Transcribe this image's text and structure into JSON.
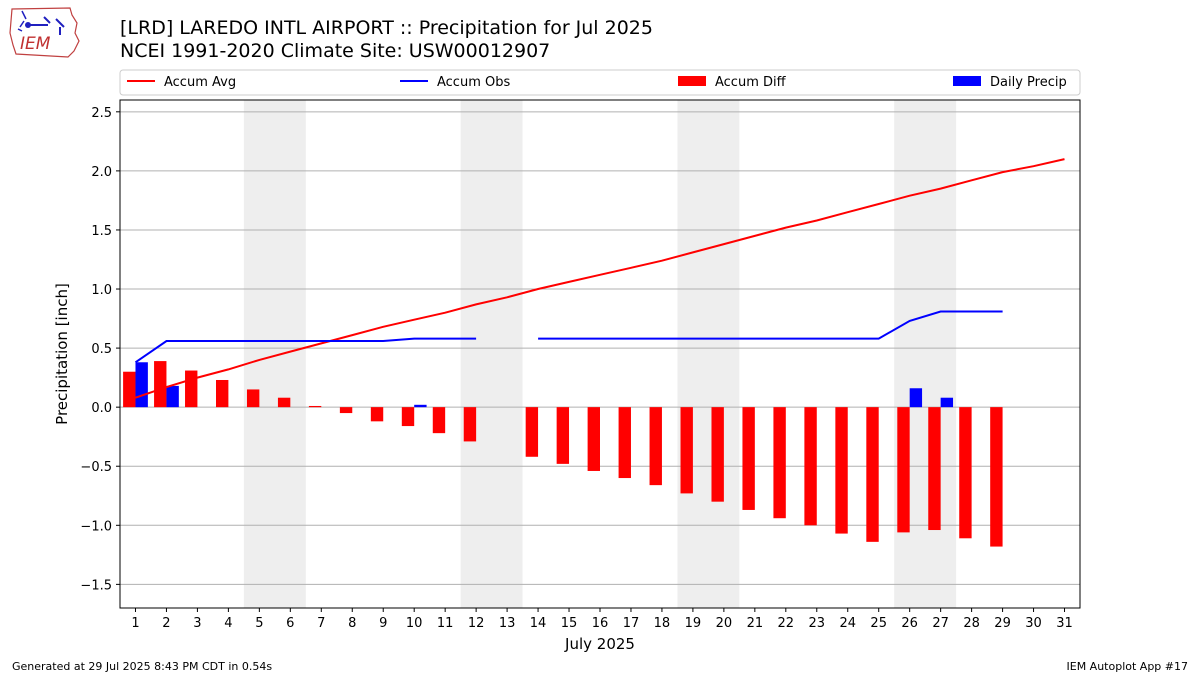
{
  "header": {
    "title_line1": "[LRD] LAREDO INTL AIRPORT :: Precipitation for Jul 2025",
    "title_line2": "NCEI 1991-2020 Climate Site: USW00012907",
    "logo_text": "IEM"
  },
  "footer": {
    "left": "Generated at 29 Jul 2025 8:43 PM CDT in 0.54s",
    "right": "IEM Autoplot App #17"
  },
  "chart_data": {
    "type": "bar",
    "title": "[LRD] LAREDO INTL AIRPORT :: Precipitation for Jul 2025",
    "subtitle": "NCEI 1991-2020 Climate Site: USW00012907",
    "xlabel": "July 2025",
    "ylabel": "Precipitation [inch]",
    "ylim": [
      -1.7,
      2.6
    ],
    "xlim": [
      0.5,
      31.5
    ],
    "yticks": [
      -1.5,
      -1.0,
      -0.5,
      0.0,
      0.5,
      1.0,
      1.5,
      2.0,
      2.5
    ],
    "ytick_labels": [
      "−1.5",
      "−1.0",
      "−0.5",
      "0.0",
      "0.5",
      "1.0",
      "1.5",
      "2.0",
      "2.5"
    ],
    "grid": true,
    "legend_position": "top",
    "weekend_shading": [
      [
        4.5,
        6.5
      ],
      [
        11.5,
        13.5
      ],
      [
        18.5,
        20.5
      ],
      [
        25.5,
        27.5
      ]
    ],
    "days": [
      1,
      2,
      3,
      4,
      5,
      6,
      7,
      8,
      9,
      10,
      11,
      12,
      13,
      14,
      15,
      16,
      17,
      18,
      19,
      20,
      21,
      22,
      23,
      24,
      25,
      26,
      27,
      28,
      29,
      30,
      31
    ],
    "series": [
      {
        "name": "Accum Avg",
        "kind": "line",
        "color": "#ff0000",
        "values": [
          0.08,
          0.17,
          0.25,
          0.32,
          0.4,
          0.47,
          0.54,
          0.61,
          0.68,
          0.74,
          0.8,
          0.87,
          0.93,
          1.0,
          1.06,
          1.12,
          1.18,
          1.24,
          1.31,
          1.38,
          1.45,
          1.52,
          1.58,
          1.65,
          1.72,
          1.79,
          1.85,
          1.92,
          1.99,
          2.04,
          2.1
        ]
      },
      {
        "name": "Accum Obs",
        "kind": "line",
        "color": "#0000ff",
        "values": [
          0.38,
          0.56,
          0.56,
          0.56,
          0.56,
          0.56,
          0.56,
          0.56,
          0.56,
          0.58,
          0.58,
          0.58,
          null,
          0.58,
          0.58,
          0.58,
          0.58,
          0.58,
          0.58,
          0.58,
          0.58,
          0.58,
          0.58,
          0.58,
          0.58,
          0.73,
          0.81,
          0.81,
          0.81,
          null,
          null
        ]
      },
      {
        "name": "Accum Diff",
        "kind": "bar",
        "color": "#ff0000",
        "values": [
          0.3,
          0.39,
          0.31,
          0.23,
          0.15,
          0.08,
          0.01,
          -0.05,
          -0.12,
          -0.16,
          -0.22,
          -0.29,
          null,
          -0.42,
          -0.48,
          -0.54,
          -0.6,
          -0.66,
          -0.73,
          -0.8,
          -0.87,
          -0.94,
          -1.0,
          -1.07,
          -1.14,
          -1.06,
          -1.04,
          -1.11,
          -1.18,
          null,
          null
        ]
      },
      {
        "name": "Daily Precip",
        "kind": "bar",
        "color": "#0000ff",
        "values": [
          0.38,
          0.18,
          0,
          0,
          0,
          0,
          0,
          0,
          0,
          0.02,
          0,
          0,
          null,
          0,
          0,
          0,
          0,
          0,
          0,
          0,
          0,
          0,
          0,
          0,
          0,
          0.16,
          0.08,
          0,
          0,
          null,
          null
        ]
      }
    ]
  }
}
